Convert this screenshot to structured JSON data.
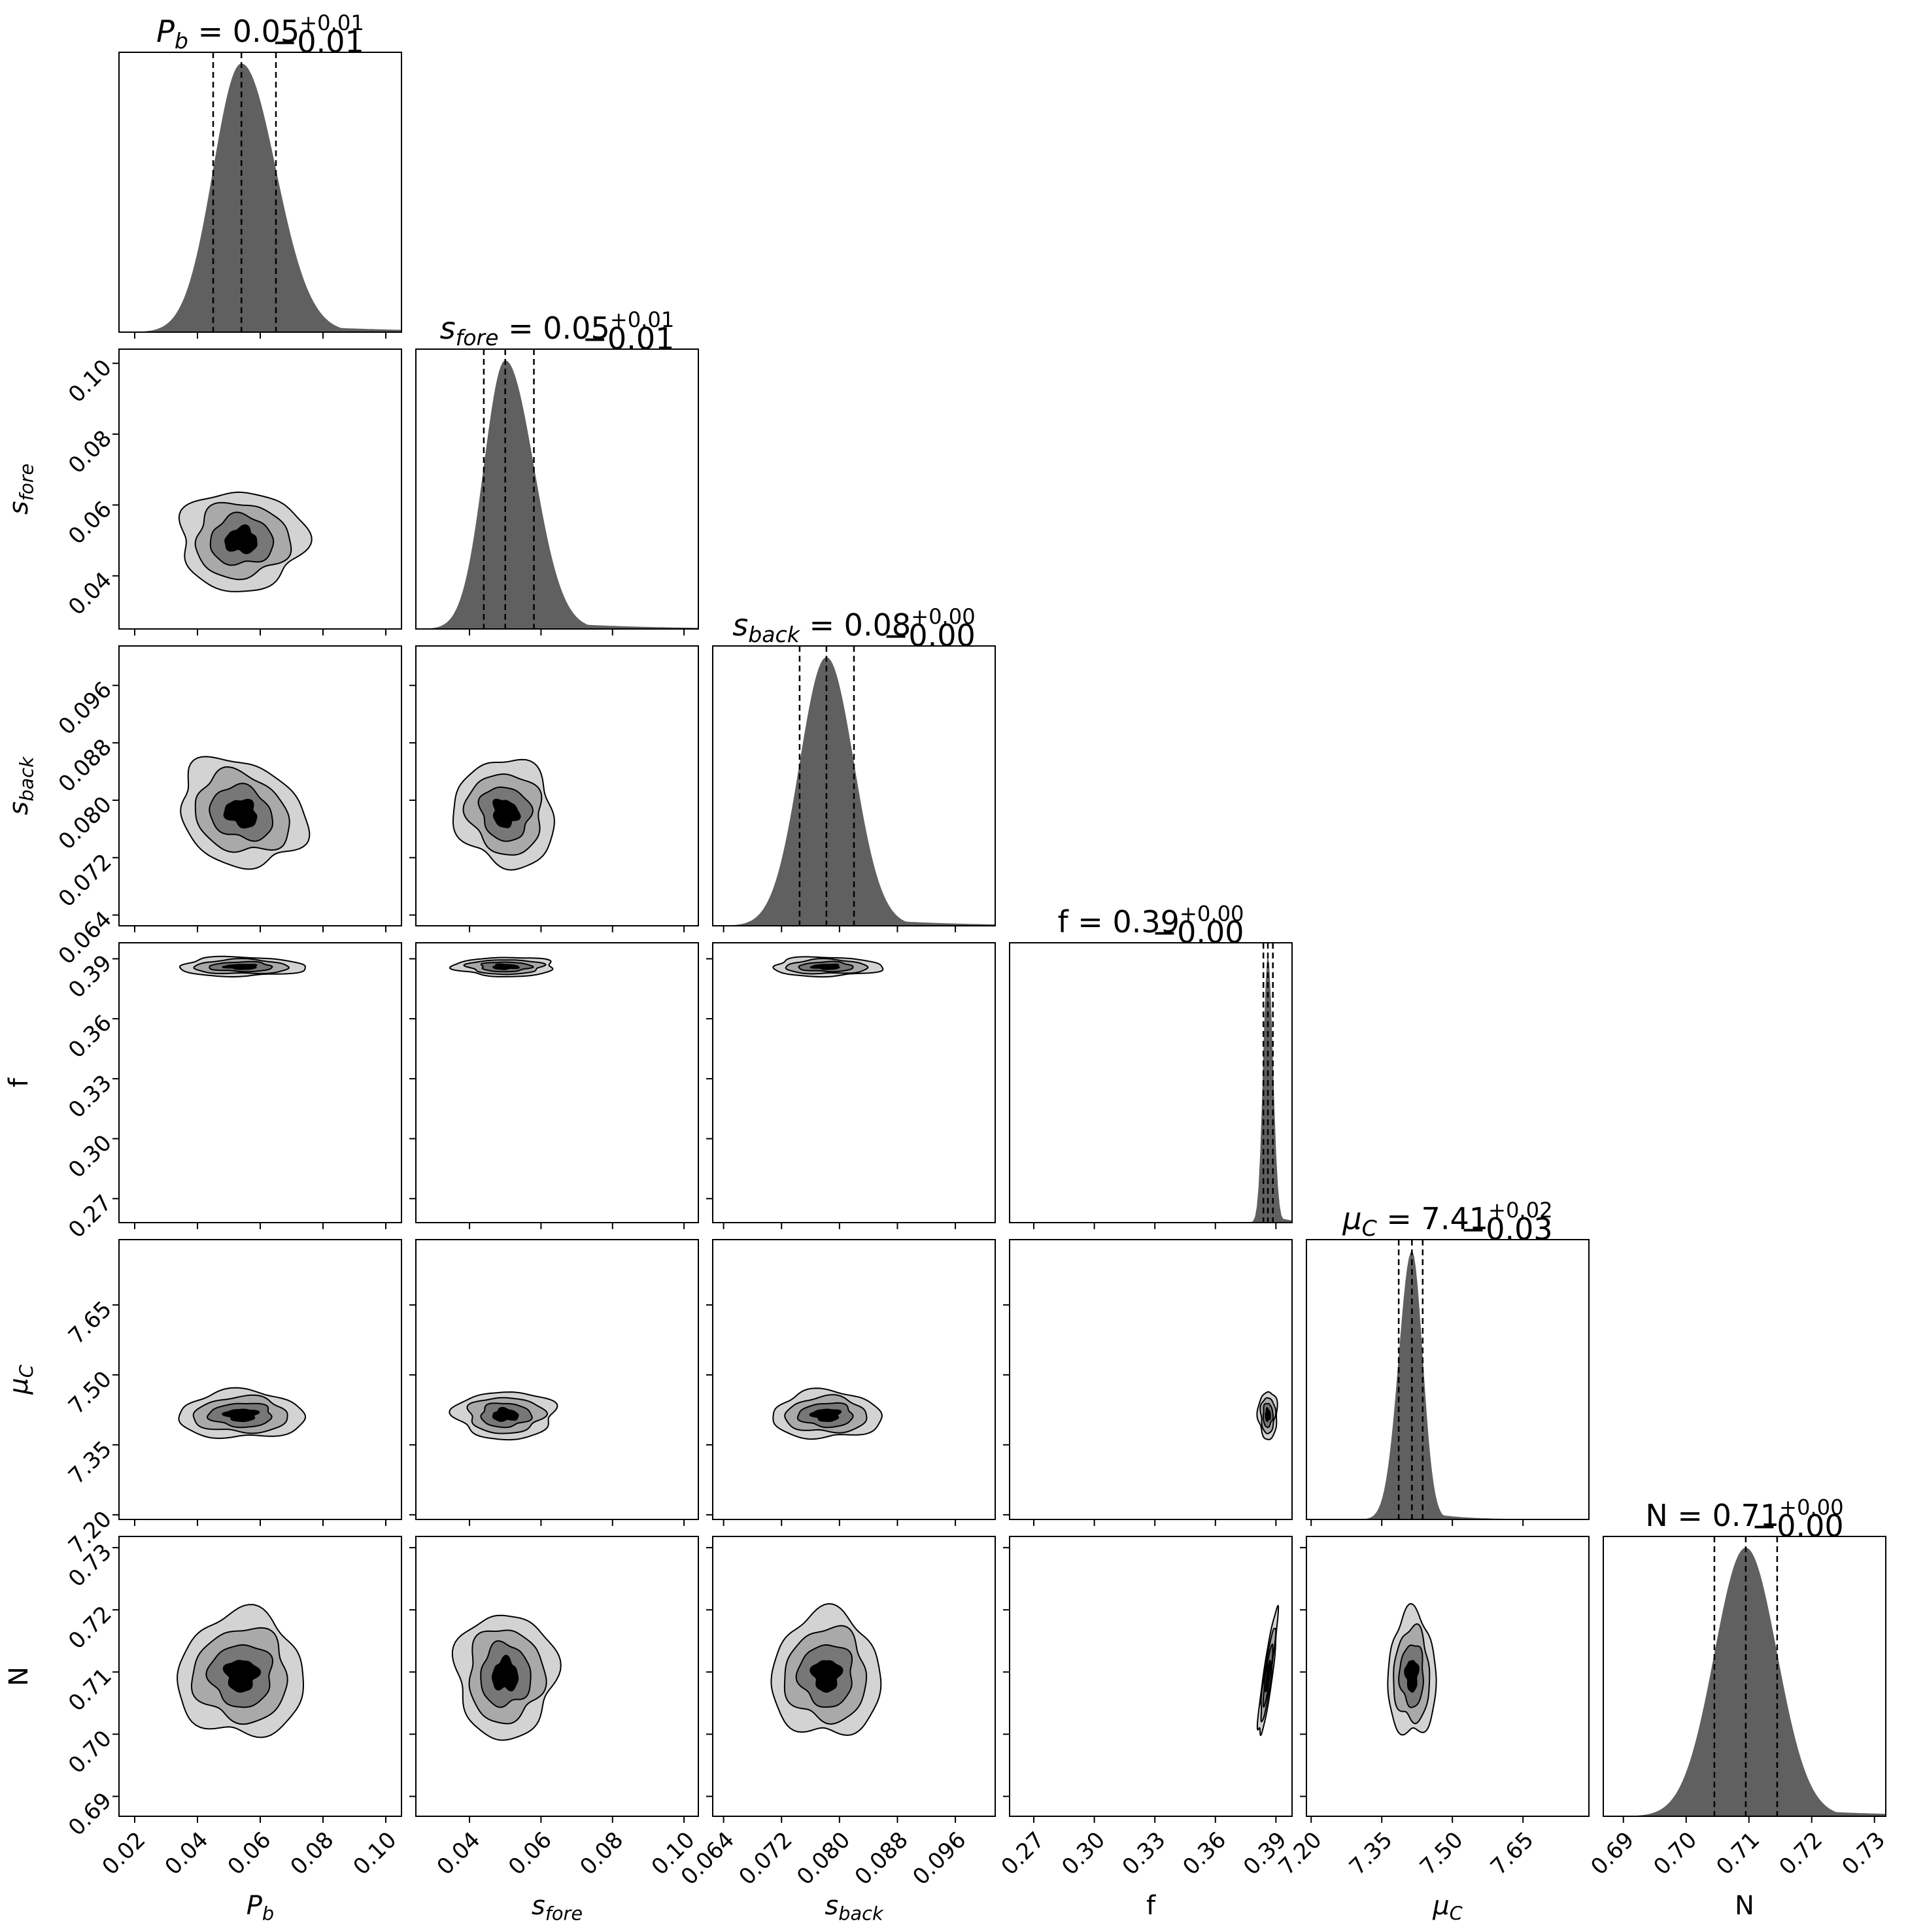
{
  "chart_data": {
    "type": "corner",
    "parameters": [
      {
        "key": "Pb",
        "label": "P_b",
        "ticks": [
          0.02,
          0.04,
          0.06,
          0.08,
          0.1
        ],
        "tick_labels": [
          "0.02",
          "0.04",
          "0.06",
          "0.08",
          "0.10"
        ],
        "range": [
          0.015,
          0.105
        ],
        "median": 0.054,
        "q16": 0.045,
        "q84": 0.065,
        "sigma_lo": 0.009,
        "sigma_hi": 0.011,
        "title": {
          "value": "0.05",
          "plus": "+0.01",
          "minus": "−0.01"
        }
      },
      {
        "key": "sfore",
        "label": "s_fore",
        "ticks": [
          0.04,
          0.06,
          0.08,
          0.1
        ],
        "tick_labels": [
          "0.04",
          "0.06",
          "0.08",
          "0.10"
        ],
        "range": [
          0.025,
          0.104
        ],
        "median": 0.05,
        "q16": 0.044,
        "q84": 0.058,
        "sigma_lo": 0.006,
        "sigma_hi": 0.008,
        "title": {
          "value": "0.05",
          "plus": "+0.01",
          "minus": "−0.01"
        }
      },
      {
        "key": "sback",
        "label": "s_back",
        "ticks": [
          0.064,
          0.072,
          0.08,
          0.088,
          0.096
        ],
        "tick_labels": [
          "0.064",
          "0.072",
          "0.080",
          "0.088",
          "0.096"
        ],
        "range": [
          0.0625,
          0.1015
        ],
        "median": 0.0782,
        "q16": 0.0745,
        "q84": 0.082,
        "sigma_lo": 0.0037,
        "sigma_hi": 0.0038,
        "title": {
          "value": "0.08",
          "plus": "+0.00",
          "minus": "−0.00"
        }
      },
      {
        "key": "f",
        "label": "f",
        "ticks": [
          0.27,
          0.3,
          0.33,
          0.36,
          0.39
        ],
        "tick_labels": [
          "0.27",
          "0.30",
          "0.33",
          "0.36",
          "0.39"
        ],
        "range": [
          0.258,
          0.398
        ],
        "median": 0.386,
        "q16": 0.3838,
        "q84": 0.3885,
        "sigma_lo": 0.0023,
        "sigma_hi": 0.0025,
        "title": {
          "value": "0.39",
          "plus": "+0.00",
          "minus": "−0.00"
        }
      },
      {
        "key": "muC",
        "label": "μ_C",
        "ticks": [
          7.2,
          7.35,
          7.5,
          7.65
        ],
        "tick_labels": [
          "7.20",
          "7.35",
          "7.50",
          "7.65"
        ],
        "range": [
          7.19,
          7.79
        ],
        "median": 7.414,
        "q16": 7.386,
        "q84": 7.437,
        "sigma_lo": 0.028,
        "sigma_hi": 0.023,
        "title": {
          "value": "7.41",
          "plus": "+0.02",
          "minus": "−0.03"
        }
      },
      {
        "key": "N",
        "label": "N",
        "ticks": [
          0.69,
          0.7,
          0.71,
          0.72,
          0.73
        ],
        "tick_labels": [
          "0.69",
          "0.70",
          "0.71",
          "0.72",
          "0.73"
        ],
        "range": [
          0.6868,
          0.7318
        ],
        "median": 0.7095,
        "q16": 0.7045,
        "q84": 0.7145,
        "sigma_lo": 0.005,
        "sigma_hi": 0.005,
        "title": {
          "value": "0.71",
          "plus": "+0.00",
          "minus": "−0.00"
        }
      }
    ],
    "correlations": {
      "Pb-sfore": 0.0,
      "Pb-sback": -0.2,
      "sfore-sback": -0.1,
      "Pb-f": 0.0,
      "sfore-f": 0.0,
      "sback-f": 0.0,
      "Pb-muC": 0.0,
      "sfore-muC": 0.0,
      "sback-muC": 0.0,
      "f-muC": 0.0,
      "Pb-N": 0.0,
      "sfore-N": 0.0,
      "sback-N": 0.0,
      "f-N": 0.88,
      "muC-N": 0.0
    },
    "contour_levels_sigma": [
      0.5,
      1.0,
      1.5,
      2.0
    ],
    "contour_fill_colors": [
      "#d3d3d3",
      "#a9a9a9",
      "#777777",
      "#000000"
    ],
    "histogram_color": "#606060",
    "quantile_line_color": "#000000"
  }
}
